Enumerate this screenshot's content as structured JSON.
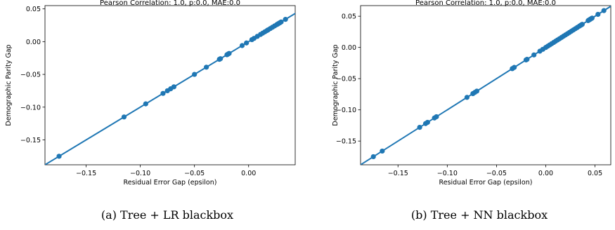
{
  "chart_data": [
    {
      "type": "scatter",
      "title": "Pearson Correlation: 1.0, p:0.0, MAE:0.0",
      "xlabel": "Residual Error Gap (epsilon)",
      "ylabel": "Demographic Parity Gap",
      "caption": "(a) Tree + LR blackbox",
      "xlim": [
        -0.188,
        0.043
      ],
      "ylim": [
        -0.188,
        0.055
      ],
      "x_ticks": [
        -0.15,
        -0.1,
        -0.05,
        0.0
      ],
      "x_tick_labels": [
        "−0.15",
        "−0.10",
        "−0.05",
        "0.00"
      ],
      "y_ticks": [
        -0.15,
        -0.1,
        -0.05,
        0.0,
        0.05
      ],
      "y_tick_labels": [
        "−0.15",
        "−0.10",
        "−0.05",
        "0.00",
        "0.05"
      ],
      "fit_line": {
        "slope": 1.0,
        "intercept": 0.0
      },
      "grid": false,
      "color": "#1f77b4",
      "points": [
        [
          -0.175,
          -0.175
        ],
        [
          -0.115,
          -0.115
        ],
        [
          -0.095,
          -0.095
        ],
        [
          -0.079,
          -0.079
        ],
        [
          -0.075,
          -0.075
        ],
        [
          -0.072,
          -0.072
        ],
        [
          -0.069,
          -0.069
        ],
        [
          -0.05,
          -0.05
        ],
        [
          -0.039,
          -0.039
        ],
        [
          -0.027,
          -0.027
        ],
        [
          -0.026,
          -0.026
        ],
        [
          -0.02,
          -0.02
        ],
        [
          -0.019,
          -0.019
        ],
        [
          -0.018,
          -0.018
        ],
        [
          -0.006,
          -0.006
        ],
        [
          -0.002,
          -0.002
        ],
        [
          0.003,
          0.003
        ],
        [
          0.005,
          0.005
        ],
        [
          0.008,
          0.008
        ],
        [
          0.011,
          0.011
        ],
        [
          0.013,
          0.013
        ],
        [
          0.015,
          0.015
        ],
        [
          0.017,
          0.017
        ],
        [
          0.018,
          0.018
        ],
        [
          0.02,
          0.02
        ],
        [
          0.022,
          0.022
        ],
        [
          0.024,
          0.024
        ],
        [
          0.026,
          0.026
        ],
        [
          0.027,
          0.027
        ],
        [
          0.028,
          0.028
        ],
        [
          0.029,
          0.029
        ],
        [
          0.03,
          0.03
        ],
        [
          0.034,
          0.034
        ]
      ]
    },
    {
      "type": "scatter",
      "title": "Pearson Correlation: 1.0, p:0.0, MAE:0.0",
      "xlabel": "Residual Error Gap (epsilon)",
      "ylabel": "Demographic Parity Gap",
      "caption": "(b) Tree + NN blackbox",
      "xlim": [
        -0.188,
        0.066
      ],
      "ylim": [
        -0.188,
        0.067
      ],
      "x_ticks": [
        -0.15,
        -0.1,
        -0.05,
        0.0,
        0.05
      ],
      "x_tick_labels": [
        "−0.15",
        "−0.10",
        "−0.05",
        "0.00",
        "0.05"
      ],
      "y_ticks": [
        -0.15,
        -0.1,
        -0.05,
        0.0,
        0.05
      ],
      "y_tick_labels": [
        "−0.15",
        "−0.10",
        "−0.05",
        "0.00",
        "0.05"
      ],
      "fit_line": {
        "slope": 1.0,
        "intercept": 0.0
      },
      "grid": false,
      "color": "#1f77b4",
      "points": [
        [
          -0.175,
          -0.175
        ],
        [
          -0.166,
          -0.166
        ],
        [
          -0.128,
          -0.128
        ],
        [
          -0.122,
          -0.122
        ],
        [
          -0.12,
          -0.12
        ],
        [
          -0.113,
          -0.113
        ],
        [
          -0.111,
          -0.111
        ],
        [
          -0.08,
          -0.08
        ],
        [
          -0.074,
          -0.074
        ],
        [
          -0.072,
          -0.072
        ],
        [
          -0.07,
          -0.07
        ],
        [
          -0.034,
          -0.034
        ],
        [
          -0.032,
          -0.032
        ],
        [
          -0.02,
          -0.02
        ],
        [
          -0.019,
          -0.019
        ],
        [
          -0.012,
          -0.012
        ],
        [
          -0.006,
          -0.006
        ],
        [
          -0.003,
          -0.003
        ],
        [
          0.0,
          0.0
        ],
        [
          0.002,
          0.002
        ],
        [
          0.004,
          0.004
        ],
        [
          0.006,
          0.006
        ],
        [
          0.008,
          0.008
        ],
        [
          0.01,
          0.01
        ],
        [
          0.012,
          0.012
        ],
        [
          0.014,
          0.014
        ],
        [
          0.016,
          0.016
        ],
        [
          0.018,
          0.018
        ],
        [
          0.02,
          0.02
        ],
        [
          0.022,
          0.022
        ],
        [
          0.024,
          0.024
        ],
        [
          0.026,
          0.026
        ],
        [
          0.028,
          0.028
        ],
        [
          0.03,
          0.03
        ],
        [
          0.032,
          0.032
        ],
        [
          0.034,
          0.034
        ],
        [
          0.035,
          0.035
        ],
        [
          0.036,
          0.036
        ],
        [
          0.037,
          0.037
        ],
        [
          0.043,
          0.043
        ],
        [
          0.044,
          0.044
        ],
        [
          0.045,
          0.045
        ],
        [
          0.046,
          0.046
        ],
        [
          0.047,
          0.047
        ],
        [
          0.053,
          0.053
        ],
        [
          0.059,
          0.059
        ]
      ]
    }
  ]
}
